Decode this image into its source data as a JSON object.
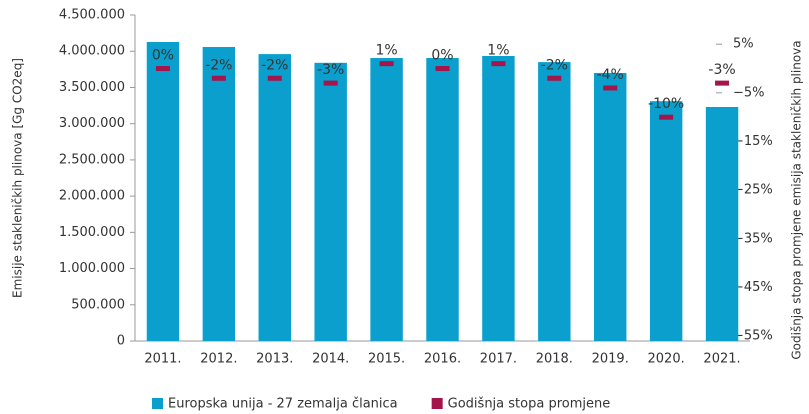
{
  "chart_data": {
    "type": "bar",
    "y_label": "Emisije stakleničkih plinova [Gg CO2eq]",
    "y2_label": "Godišnja stopa promjene emisija stakleničkih plinova",
    "categories": [
      "2011.",
      "2012.",
      "2013.",
      "2014.",
      "2015.",
      "2016.",
      "2017.",
      "2018.",
      "2019.",
      "2020.",
      "2021."
    ],
    "series": [
      {
        "name": "Europska unija - 27 zemalja članica",
        "color": "#0a9fcc",
        "type": "bar",
        "values": [
          4127000,
          4058000,
          3960000,
          3840000,
          3906000,
          3906000,
          3934000,
          3850000,
          3700000,
          3310000,
          3230000
        ]
      },
      {
        "name": "Godišnja stopa promjene",
        "color": "#a3154b",
        "type": "marker",
        "axis": "y2",
        "values": [
          0,
          -2,
          -2,
          -3,
          1,
          0,
          1,
          -2,
          -4,
          -10,
          -3
        ],
        "value_labels": [
          "0%",
          "-2%",
          "-2%",
          "-3%",
          "1%",
          "0%",
          "1%",
          "-2%",
          "-4%",
          "-10%",
          "-3%"
        ]
      }
    ],
    "ylim": [
      0,
      4500000
    ],
    "yticks": [
      0,
      {
        "value": 500000,
        "label": "500.000"
      },
      {
        "value": 1000000,
        "label": "1.000.000"
      },
      {
        "value": 1500000,
        "label": "1.500.000"
      },
      {
        "value": 2000000,
        "label": "2.000.000"
      },
      {
        "value": 2500000,
        "label": "2.500.000"
      },
      {
        "value": 3000000,
        "label": "3.000.000"
      },
      {
        "value": 3500000,
        "label": "3.500.000"
      },
      {
        "value": 4000000,
        "label": "4.000.000"
      },
      {
        "value": 4500000,
        "label": "4.500.000"
      }
    ],
    "y2lim": [
      -56,
      11
    ],
    "y2ticks": [
      {
        "value": 5,
        "label": "5%"
      },
      {
        "value": -5,
        "label": "−5%"
      },
      {
        "value": -15,
        "label": "−15%"
      },
      {
        "value": -25,
        "label": "−25%"
      },
      {
        "value": -35,
        "label": "−35%"
      },
      {
        "value": -45,
        "label": "−45%"
      },
      {
        "value": -55,
        "label": "−55%"
      }
    ],
    "legend": "bottom"
  }
}
